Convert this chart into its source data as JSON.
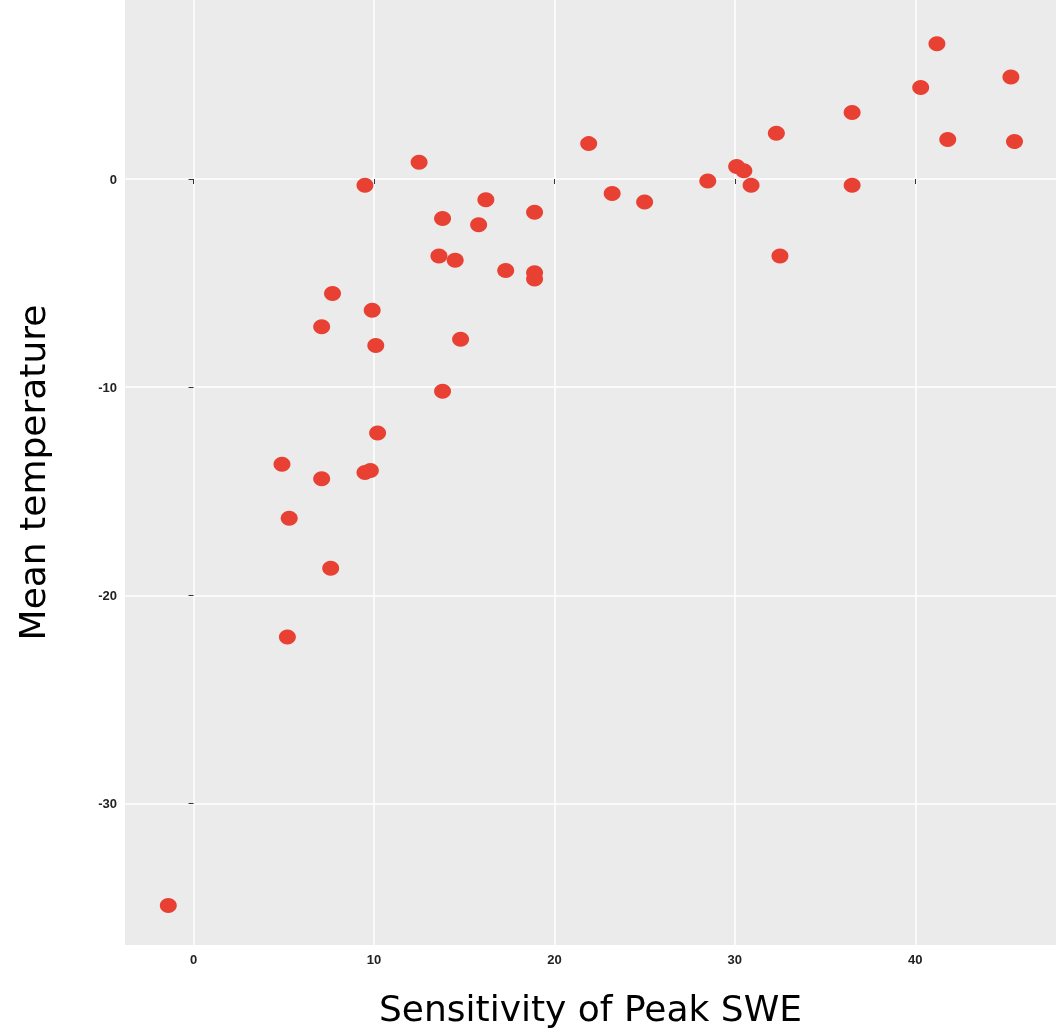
{
  "chart_data": {
    "type": "scatter",
    "xlabel": "Sensitivity of Peak SWE",
    "ylabel": "Mean temperature",
    "xlim": [
      -3.8,
      47.8
    ],
    "ylim": [
      -36.8,
      8.6
    ],
    "xticks": [
      0,
      10,
      20,
      30,
      40
    ],
    "yticks": [
      -30,
      -20,
      -10,
      0
    ],
    "grid": true,
    "marker": "circle",
    "series": [
      {
        "color": "#e84133",
        "x": [
          -1.4,
          5.2,
          7.6,
          5.3,
          4.9,
          7.1,
          9.5,
          9.8,
          10.2,
          13.8,
          7.7,
          7.1,
          9.9,
          10.1,
          14.8,
          13.6,
          14.5,
          17.3,
          18.9,
          18.9,
          9.5,
          12.5,
          13.8,
          16.2,
          15.8,
          18.9,
          21.9,
          23.2,
          25.0,
          28.5,
          30.1,
          30.5,
          30.9,
          32.5,
          32.3,
          36.5,
          36.5,
          40.3,
          41.2,
          41.8,
          45.3,
          45.5
        ],
        "values": [
          -34.9,
          -22.0,
          -18.7,
          -16.3,
          -13.7,
          -14.4,
          -14.1,
          -14.0,
          -12.2,
          -10.2,
          -5.5,
          -7.1,
          -6.3,
          -8.0,
          -7.7,
          -3.7,
          -3.9,
          -4.4,
          -4.5,
          -4.8,
          -0.3,
          0.8,
          -1.9,
          -1.0,
          -2.2,
          -1.6,
          1.7,
          -0.7,
          -1.1,
          -0.1,
          0.6,
          0.4,
          -0.3,
          -3.7,
          2.2,
          3.2,
          -0.3,
          4.4,
          6.5,
          1.9,
          4.9,
          1.8
        ]
      }
    ]
  }
}
